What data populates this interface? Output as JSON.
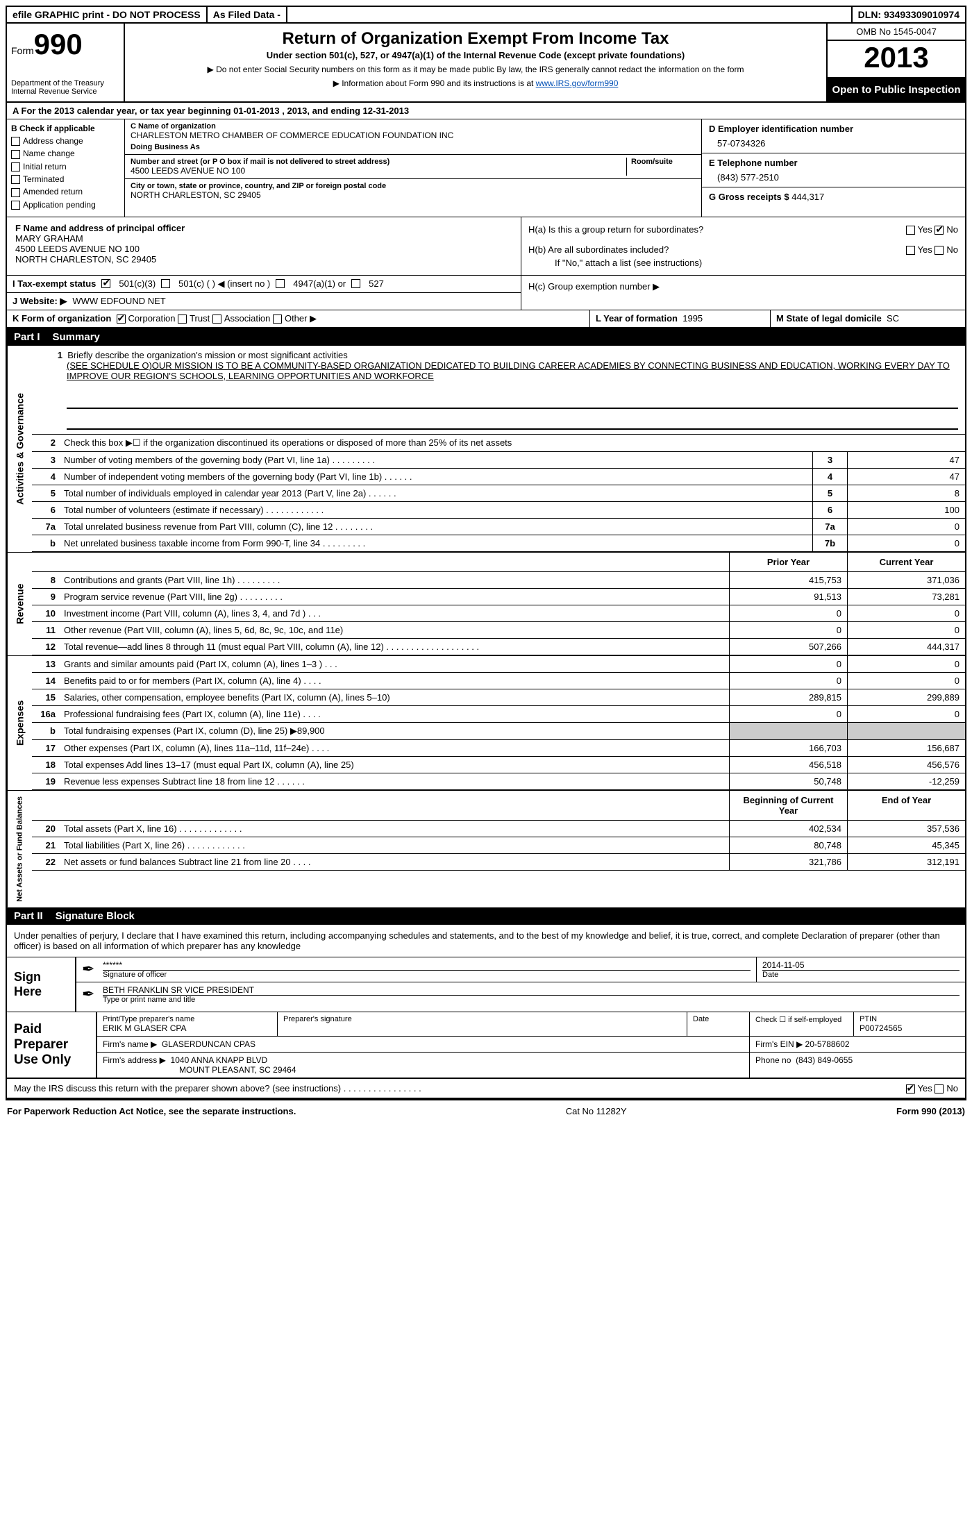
{
  "topbar": {
    "efile": "efile GRAPHIC print - DO NOT PROCESS",
    "filed": "As Filed Data -",
    "dln_label": "DLN:",
    "dln": "93493309010974"
  },
  "header": {
    "form_word": "Form",
    "form_num": "990",
    "dept": "Department of the Treasury",
    "irs": "Internal Revenue Service",
    "title": "Return of Organization Exempt From Income Tax",
    "subtitle": "Under section 501(c), 527, or 4947(a)(1) of the Internal Revenue Code (except private foundations)",
    "note1": "▶ Do not enter Social Security numbers on this form as it may be made public  By law, the IRS generally cannot redact the information on the form",
    "note2": "▶ Information about Form 990 and its instructions is at ",
    "note2_link": "www.IRS.gov/form990",
    "omb": "OMB No  1545-0047",
    "year": "2013",
    "open": "Open to Public Inspection"
  },
  "a": "A  For the 2013 calendar year, or tax year beginning 01-01-2013     , 2013, and ending 12-31-2013",
  "b": {
    "label": "B  Check if applicable",
    "items": [
      "Address change",
      "Name change",
      "Initial return",
      "Terminated",
      "Amended return",
      "Application pending"
    ]
  },
  "c": {
    "name_label": "C Name of organization",
    "name": "CHARLESTON METRO CHAMBER OF COMMERCE EDUCATION FOUNDATION INC",
    "dba_label": "Doing Business As",
    "street_label": "Number and street (or P O  box if mail is not delivered to street address)",
    "room_label": "Room/suite",
    "street": "4500 LEEDS AVENUE NO 100",
    "city_label": "City or town, state or province, country, and ZIP or foreign postal code",
    "city": "NORTH CHARLESTON, SC  29405"
  },
  "d": {
    "label": "D Employer identification number",
    "val": "57-0734326"
  },
  "e": {
    "label": "E Telephone number",
    "val": "(843) 577-2510"
  },
  "g": {
    "label": "G Gross receipts $",
    "val": "444,317"
  },
  "f": {
    "label": "F  Name and address of principal officer",
    "name": "MARY GRAHAM",
    "addr1": "4500 LEEDS AVENUE NO 100",
    "addr2": "NORTH CHARLESTON, SC  29405"
  },
  "h": {
    "a": "H(a)  Is this a group return for subordinates?",
    "b": "H(b)  Are all subordinates included?",
    "b_note": "If \"No,\" attach a list  (see instructions)",
    "c": "H(c)  Group exemption number ▶"
  },
  "i": "I   Tax-exempt status",
  "i_opts": {
    "a": "501(c)(3)",
    "b": "501(c) (   ) ◀ (insert no )",
    "c": "4947(a)(1) or",
    "d": "527"
  },
  "j": {
    "label": "J   Website: ▶",
    "val": "WWW EDFOUND NET"
  },
  "k": {
    "label": "K Form of organization",
    "opts": [
      "Corporation",
      "Trust",
      "Association",
      "Other ▶"
    ]
  },
  "l": {
    "label": "L Year of formation",
    "val": "1995"
  },
  "m": {
    "label": "M State of legal domicile",
    "val": "SC"
  },
  "part1": {
    "num": "Part I",
    "title": "Summary"
  },
  "sides": {
    "ag": "Activities & Governance",
    "rev": "Revenue",
    "exp": "Expenses",
    "nab": "Net Assets or Fund Balances"
  },
  "mission": {
    "lead": "1    Briefly describe the organization's mission or most significant activities",
    "text": "(SEE SCHEDULE O)OUR MISSION IS TO BE A COMMUNITY-BASED ORGANIZATION DEDICATED TO BUILDING CAREER ACADEMIES BY CONNECTING BUSINESS AND EDUCATION, WORKING EVERY DAY TO IMPROVE OUR REGION'S SCHOOLS, LEARNING OPPORTUNITIES AND WORKFORCE"
  },
  "line2": "Check this box ▶☐ if the organization discontinued its operations or disposed of more than 25% of its net assets",
  "govlines": [
    {
      "n": "3",
      "d": "Number of voting members of the governing body (Part VI, line 1a)   .    .    .    .    .    .    .    .    .",
      "b": "3",
      "v": "47"
    },
    {
      "n": "4",
      "d": "Number of independent voting members of the governing body (Part VI, line 1b)    .    .    .    .    .    .",
      "b": "4",
      "v": "47"
    },
    {
      "n": "5",
      "d": "Total number of individuals employed in calendar year 2013 (Part V, line 2a)   .    .    .    .    .    .",
      "b": "5",
      "v": "8"
    },
    {
      "n": "6",
      "d": "Total number of volunteers (estimate if necessary)    .    .    .    .    .    .    .    .    .    .    .    .",
      "b": "6",
      "v": "100"
    },
    {
      "n": "7a",
      "d": "Total unrelated business revenue from Part VIII, column (C), line 12    .    .    .    .    .    .    .    .",
      "b": "7a",
      "v": "0"
    },
    {
      "n": "b",
      "d": "Net unrelated business taxable income from Form 990-T, line 34    .    .    .    .    .    .    .    .    .",
      "b": "7b",
      "v": "0"
    }
  ],
  "colhdr": {
    "prior": "Prior Year",
    "current": "Current Year"
  },
  "revlines": [
    {
      "n": "8",
      "d": "Contributions and grants (Part VIII, line 1h)    .    .    .    .    .    .    .    .    .",
      "p": "415,753",
      "c": "371,036"
    },
    {
      "n": "9",
      "d": "Program service revenue (Part VIII, line 2g)    .    .    .    .    .    .    .    .    .",
      "p": "91,513",
      "c": "73,281"
    },
    {
      "n": "10",
      "d": "Investment income (Part VIII, column (A), lines 3, 4, and 7d )    .    .    .",
      "p": "0",
      "c": "0"
    },
    {
      "n": "11",
      "d": "Other revenue (Part VIII, column (A), lines 5, 6d, 8c, 9c, 10c, and 11e)",
      "p": "0",
      "c": "0"
    },
    {
      "n": "12",
      "d": "Total revenue—add lines 8 through 11 (must equal Part VIII, column (A), line 12) .    .    .    .    .    .    .    .    .    .    .    .    .    .    .    .    .    .    .",
      "p": "507,266",
      "c": "444,317"
    }
  ],
  "explines": [
    {
      "n": "13",
      "d": "Grants and similar amounts paid (Part IX, column (A), lines 1–3 )   .    .    .",
      "p": "0",
      "c": "0"
    },
    {
      "n": "14",
      "d": "Benefits paid to or for members (Part IX, column (A), line 4)    .    .    .    .",
      "p": "0",
      "c": "0"
    },
    {
      "n": "15",
      "d": "Salaries, other compensation, employee benefits (Part IX, column (A), lines 5–10)",
      "p": "289,815",
      "c": "299,889"
    },
    {
      "n": "16a",
      "d": "Professional fundraising fees (Part IX, column (A), line 11e)    .    .    .    .",
      "p": "0",
      "c": "0"
    },
    {
      "n": "b",
      "d": "Total fundraising expenses (Part IX, column (D), line 25) ▶89,900",
      "p": "",
      "c": "",
      "shade": true
    },
    {
      "n": "17",
      "d": "Other expenses (Part IX, column (A), lines 11a–11d, 11f–24e)   .    .    .    .",
      "p": "166,703",
      "c": "156,687"
    },
    {
      "n": "18",
      "d": "Total expenses  Add lines 13–17 (must equal Part IX, column (A), line 25)",
      "p": "456,518",
      "c": "456,576"
    },
    {
      "n": "19",
      "d": "Revenue less expenses  Subtract line 18 from line 12    .    .    .    .    .    .",
      "p": "50,748",
      "c": "-12,259"
    }
  ],
  "colhdr2": {
    "begin": "Beginning of Current Year",
    "end": "End of Year"
  },
  "nablines": [
    {
      "n": "20",
      "d": "Total assets (Part X, line 16)    .    .    .    .    .    .    .    .    .    .    .    .    .",
      "p": "402,534",
      "c": "357,536"
    },
    {
      "n": "21",
      "d": "Total liabilities (Part X, line 26)   .    .    .    .    .    .    .    .    .    .    .    .",
      "p": "80,748",
      "c": "45,345"
    },
    {
      "n": "22",
      "d": "Net assets or fund balances  Subtract line 21 from line 20    .    .    .    .",
      "p": "321,786",
      "c": "312,191"
    }
  ],
  "part2": {
    "num": "Part II",
    "title": "Signature Block"
  },
  "perjury": "Under penalties of perjury, I declare that I have examined this return, including accompanying schedules and statements, and to the best of my knowledge and belief, it is true, correct, and complete  Declaration of preparer (other than officer) is based on all information of which preparer has any knowledge",
  "sign": {
    "here": "Sign Here",
    "stars": "******",
    "sig_label": "Signature of officer",
    "date": "2014-11-05",
    "date_label": "Date",
    "name": "BETH FRANKLIN SR VICE PRESIDENT",
    "name_label": "Type or print name and title"
  },
  "paid": {
    "label": "Paid Preparer Use Only",
    "h1": "Print/Type preparer's name",
    "name": "ERIK M GLASER CPA",
    "h2": "Preparer's signature",
    "h3": "Date",
    "h4a": "Check ☐ if self-employed",
    "h4b": "PTIN",
    "ptin": "P00724565",
    "firm_label": "Firm's name    ▶",
    "firm": "GLASERDUNCAN CPAS",
    "ein_label": "Firm's EIN ▶",
    "ein": "20-5788602",
    "addr_label": "Firm's address ▶",
    "addr1": "1040 ANNA KNAPP BLVD",
    "addr2": "MOUNT PLEASANT, SC  29464",
    "phone_label": "Phone no",
    "phone": "(843) 849-0655"
  },
  "discuss": "May the IRS discuss this return with the preparer shown above? (see instructions)   .    .    .    .    .    .    .    .    .    .    .    .    .    .    .    .",
  "yesno": {
    "yes": "Yes",
    "no": "No"
  },
  "footer": {
    "left": "For Paperwork Reduction Act Notice, see the separate instructions.",
    "mid": "Cat No  11282Y",
    "right": "Form 990 (2013)"
  }
}
